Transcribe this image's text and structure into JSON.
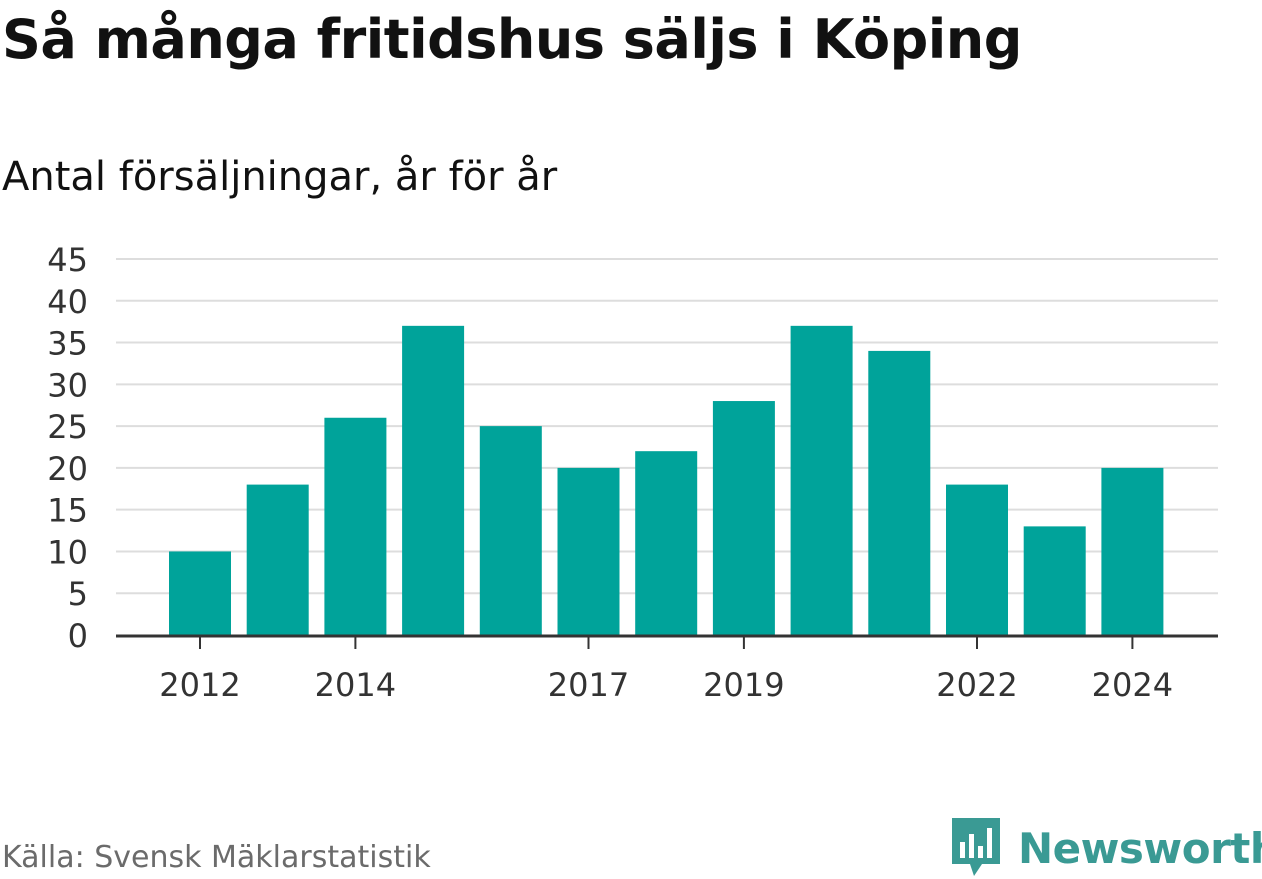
{
  "header": {
    "title": "Så många fritidshus säljs i Köping",
    "subtitle": "Antal försäljningar, år för år"
  },
  "footer": {
    "source": "Källa: Svensk Mäklarstatistik",
    "brand": "Newsworthy"
  },
  "colors": {
    "bar": "#00a39a",
    "grid": "#dddddd",
    "axis": "#333333",
    "brand": "#3a9a94"
  },
  "chart_data": {
    "type": "bar",
    "categories": [
      "2012",
      "2013",
      "2014",
      "2015",
      "2016",
      "2017",
      "2018",
      "2019",
      "2020",
      "2021",
      "2022",
      "2023",
      "2024"
    ],
    "values": [
      10,
      18,
      26,
      37,
      25,
      20,
      22,
      28,
      37,
      34,
      18,
      13,
      20
    ],
    "x_tick_labels": [
      "2012",
      "2014",
      "2017",
      "2019",
      "2022",
      "2024"
    ],
    "y_ticks": [
      0,
      5,
      10,
      15,
      20,
      25,
      30,
      35,
      40,
      45
    ],
    "ylim": [
      0,
      45
    ],
    "grid": true,
    "legend": false
  }
}
